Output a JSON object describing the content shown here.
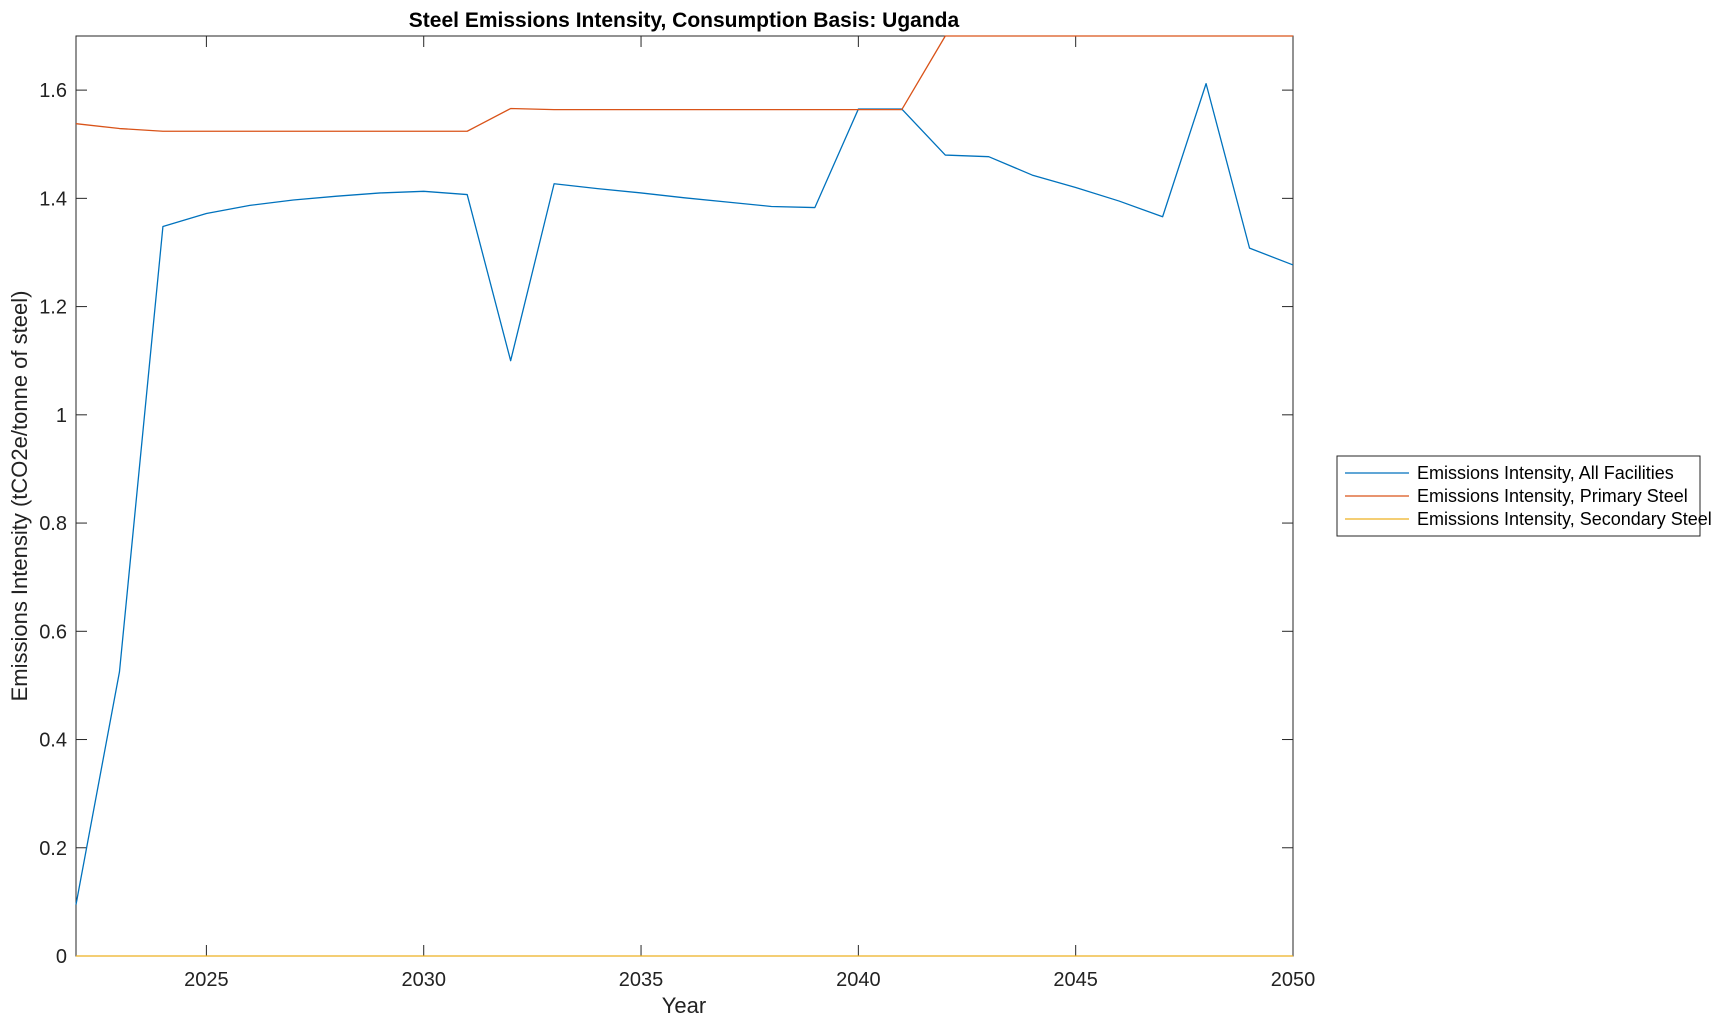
{
  "chart_data": {
    "type": "line",
    "title": "Steel Emissions Intensity, Consumption Basis: Uganda",
    "xlabel": "Year",
    "ylabel": "Emissions Intensity (tCO2e/tonne of steel)",
    "xlim": [
      2022,
      2050
    ],
    "ylim": [
      0,
      1.7
    ],
    "xticks": [
      2025,
      2030,
      2035,
      2040,
      2045,
      2050
    ],
    "yticks": [
      0,
      0.2,
      0.4,
      0.6,
      0.8,
      1,
      1.2,
      1.4,
      1.6
    ],
    "ytick_labels": [
      "0",
      "0.2",
      "0.4",
      "0.6",
      "0.8",
      "1",
      "1.2",
      "1.4",
      "1.6"
    ],
    "grid": false,
    "legend_position": "outside-right",
    "x": [
      2022,
      2023,
      2024,
      2025,
      2026,
      2027,
      2028,
      2029,
      2030,
      2031,
      2032,
      2033,
      2034,
      2035,
      2036,
      2037,
      2038,
      2039,
      2040,
      2041,
      2042,
      2043,
      2044,
      2045,
      2046,
      2047,
      2048,
      2049,
      2050
    ],
    "series": [
      {
        "name": "Emissions Intensity, All Facilities",
        "color": "#0072BD",
        "values": [
          0.095,
          0.525,
          1.348,
          1.372,
          1.387,
          1.397,
          1.404,
          1.41,
          1.413,
          1.407,
          1.1,
          1.427,
          1.418,
          1.41,
          1.401,
          1.393,
          1.385,
          1.383,
          1.565,
          1.565,
          1.48,
          1.477,
          1.443,
          1.42,
          1.395,
          1.366,
          1.612,
          1.308,
          1.277
        ]
      },
      {
        "name": "Emissions Intensity, Primary Steel",
        "color": "#D95319",
        "values": [
          1.538,
          1.529,
          1.524,
          1.524,
          1.524,
          1.524,
          1.524,
          1.524,
          1.524,
          1.524,
          1.566,
          1.564,
          1.564,
          1.564,
          1.564,
          1.564,
          1.564,
          1.564,
          1.564,
          1.564,
          1.7,
          1.7,
          1.7,
          1.7,
          1.7,
          1.7,
          1.7,
          1.7,
          1.7
        ]
      },
      {
        "name": "Emissions Intensity, Secondary Steel",
        "color": "#EDB120",
        "values": [
          0,
          0,
          0,
          0,
          0,
          0,
          0,
          0,
          0,
          0,
          0,
          0,
          0,
          0,
          0,
          0,
          0,
          0,
          0,
          0,
          0,
          0,
          0,
          0,
          0,
          0,
          0,
          0,
          0
        ]
      }
    ]
  }
}
